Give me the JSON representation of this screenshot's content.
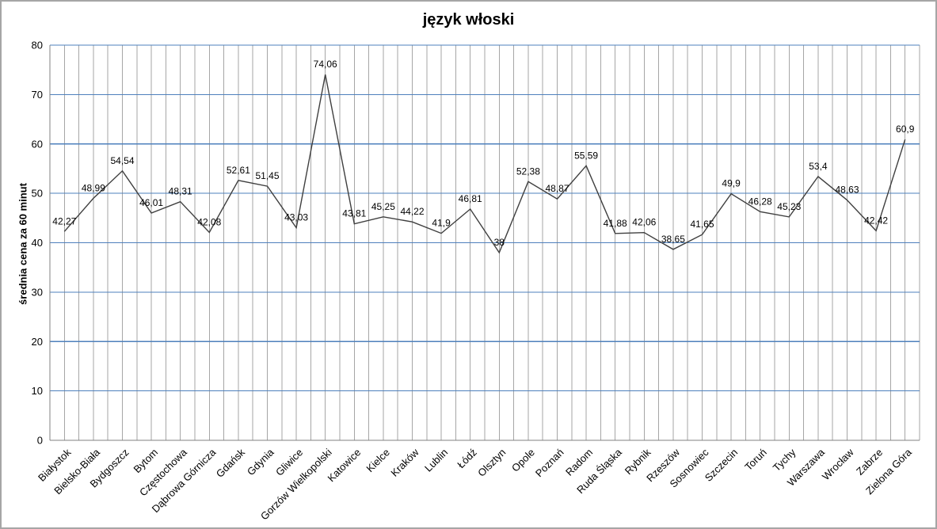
{
  "chart_data": {
    "type": "line",
    "title": "język włoski",
    "ylabel": "średnia cena za 60 minut",
    "xlabel": "",
    "legend_position": "none",
    "categories": [
      "Białystok",
      "Bielsko-Biała",
      "Bydgoszcz",
      "Bytom",
      "Częstochowa",
      "Dąbrowa Górnicza",
      "Gdańsk",
      "Gdynia",
      "Gliwice",
      "Gorzów Wielkopolski",
      "Katowice",
      "Kielce",
      "Kraków",
      "Lublin",
      "Łódź",
      "Olsztyn",
      "Opole",
      "Poznań",
      "Radom",
      "Ruda Śląska",
      "Rybnik",
      "Rzeszów",
      "Sosnowiec",
      "Szczecin",
      "Toruń",
      "Tychy",
      "Warszawa",
      "Wrocław",
      "Zabrze",
      "Zielona Góra"
    ],
    "values": [
      42.27,
      48.99,
      54.54,
      46.01,
      48.31,
      42.08,
      52.61,
      51.45,
      43.03,
      74.06,
      43.81,
      45.25,
      44.22,
      41.9,
      46.81,
      38,
      52.38,
      48.87,
      55.59,
      41.88,
      42.06,
      38.65,
      41.65,
      49.9,
      46.28,
      45.23,
      53.4,
      48.63,
      42.42,
      60.9
    ],
    "value_labels": [
      "42,27",
      "48,99",
      "54,54",
      "46,01",
      "48,31",
      "42,08",
      "52,61",
      "51,45",
      "43,03",
      "74,06",
      "43,81",
      "45,25",
      "44,22",
      "41,9",
      "46,81",
      "38",
      "52,38",
      "48,87",
      "55,59",
      "41,88",
      "42,06",
      "38,65",
      "41,65",
      "49,9",
      "46,28",
      "45,23",
      "53,4",
      "48,63",
      "42,42",
      "60,9"
    ],
    "ylim": [
      0,
      80
    ],
    "yticks": [
      0,
      10,
      20,
      30,
      40,
      50,
      60,
      70,
      80
    ],
    "grid": {
      "horizontal": true,
      "vertical": true,
      "vertical_lines_per_category": 2
    },
    "colors": {
      "series_line": "#3f3f3f",
      "h_gridline": "#4e80bc",
      "v_gridline": "#a6a6a6",
      "axis_line": "#808080",
      "text": "#000000",
      "frame_border": "#a6a6a6",
      "background": "#ffffff"
    }
  }
}
